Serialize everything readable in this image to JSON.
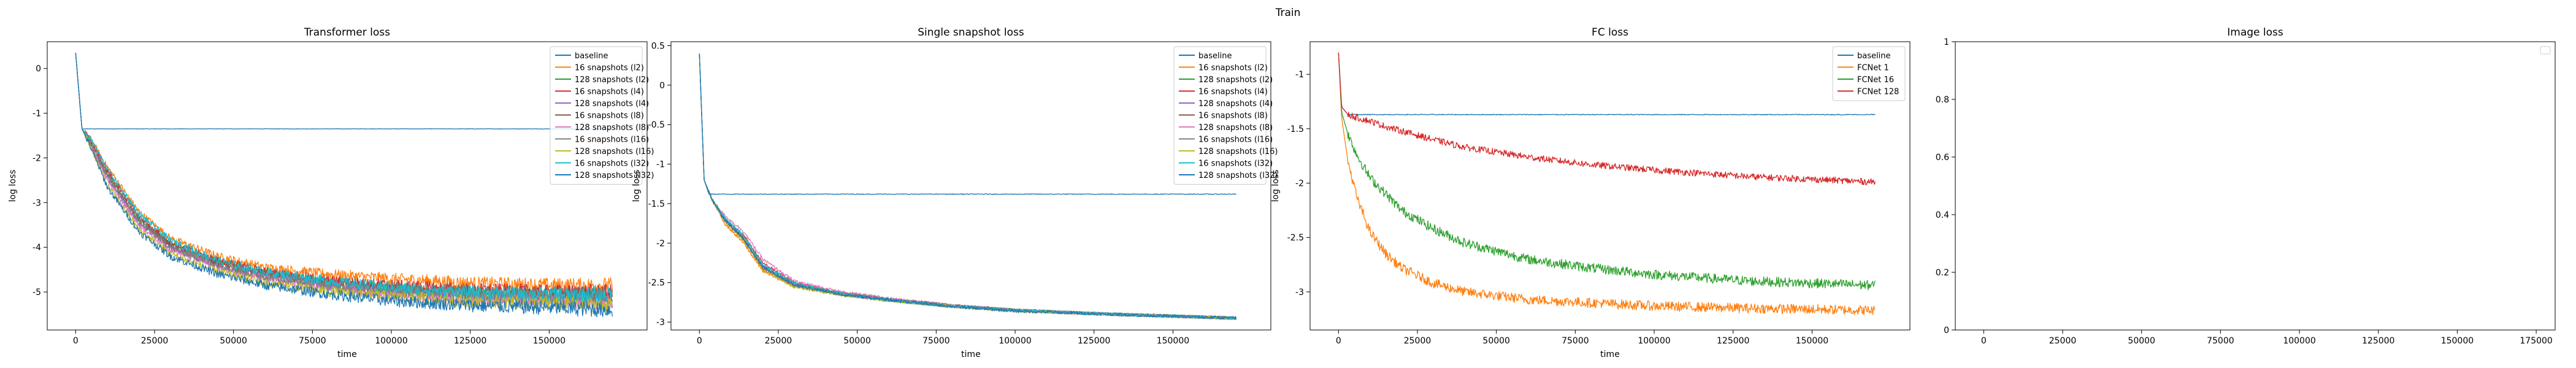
{
  "figure": {
    "suptitle": "Train"
  },
  "chart_data": [
    {
      "type": "line",
      "title": "Transformer loss",
      "xlabel": "time",
      "ylabel": "log loss",
      "xlim": [
        -9000,
        181000
      ],
      "ylim": [
        -5.85,
        0.6
      ],
      "xticks": [
        0,
        25000,
        50000,
        75000,
        100000,
        125000,
        150000
      ],
      "yticks": [
        0,
        -1,
        -2,
        -3,
        -4,
        -5
      ],
      "legend_position": "top-right",
      "x_range": [
        0,
        170000
      ],
      "series": [
        {
          "name": "baseline",
          "color": "#1f77b4",
          "x": [
            0,
            2000,
            5000,
            10000,
            20000,
            40000,
            60000,
            80000,
            100000,
            120000,
            140000,
            160000,
            170000
          ],
          "y": [
            0.35,
            -1.35,
            -1.35,
            -1.35,
            -1.35,
            -1.35,
            -1.35,
            -1.35,
            -1.35,
            -1.35,
            -1.35,
            -1.35,
            -1.35
          ]
        },
        {
          "name": "16 snapshots (l2)",
          "color": "#ff7f0e",
          "x": [
            0,
            2000,
            5000,
            10000,
            20000,
            30000,
            45000,
            60000,
            80000,
            100000,
            125000,
            150000,
            170000
          ],
          "y": [
            0.35,
            -1.35,
            -1.6,
            -2.2,
            -3.2,
            -3.8,
            -4.2,
            -4.45,
            -4.6,
            -4.7,
            -4.8,
            -4.85,
            -4.85
          ]
        },
        {
          "name": "128 snapshots (l2)",
          "color": "#2ca02c",
          "x": [
            0,
            2000,
            5000,
            10000,
            20000,
            30000,
            45000,
            60000,
            80000,
            100000,
            125000,
            150000,
            170000
          ],
          "y": [
            0.35,
            -1.35,
            -1.7,
            -2.4,
            -3.4,
            -3.95,
            -4.35,
            -4.6,
            -4.8,
            -4.95,
            -5.05,
            -5.1,
            -5.1
          ]
        },
        {
          "name": "16 snapshots (l4)",
          "color": "#d62728",
          "x": [
            0,
            2000,
            5000,
            10000,
            20000,
            30000,
            45000,
            60000,
            80000,
            100000,
            125000,
            150000,
            170000
          ],
          "y": [
            0.35,
            -1.35,
            -1.65,
            -2.3,
            -3.3,
            -3.9,
            -4.3,
            -4.55,
            -4.75,
            -4.85,
            -4.95,
            -5.0,
            -5.0
          ]
        },
        {
          "name": "128 snapshots (l4)",
          "color": "#9467bd",
          "x": [
            0,
            2000,
            5000,
            10000,
            20000,
            30000,
            45000,
            60000,
            80000,
            100000,
            125000,
            150000,
            170000
          ],
          "y": [
            0.35,
            -1.35,
            -1.75,
            -2.45,
            -3.45,
            -4.0,
            -4.4,
            -4.65,
            -4.85,
            -5.0,
            -5.1,
            -5.15,
            -5.2
          ]
        },
        {
          "name": "16 snapshots (l8)",
          "color": "#8c564b",
          "x": [
            0,
            2000,
            5000,
            10000,
            20000,
            30000,
            45000,
            60000,
            80000,
            100000,
            125000,
            150000,
            170000
          ],
          "y": [
            0.35,
            -1.35,
            -1.7,
            -2.35,
            -3.35,
            -3.95,
            -4.35,
            -4.6,
            -4.8,
            -4.9,
            -5.0,
            -5.05,
            -5.05
          ]
        },
        {
          "name": "128 snapshots (l8)",
          "color": "#e377c2",
          "x": [
            0,
            2000,
            5000,
            10000,
            20000,
            30000,
            45000,
            60000,
            80000,
            100000,
            125000,
            150000,
            170000
          ],
          "y": [
            0.35,
            -1.35,
            -1.75,
            -2.5,
            -3.5,
            -4.05,
            -4.45,
            -4.7,
            -4.9,
            -5.05,
            -5.15,
            -5.2,
            -5.25
          ]
        },
        {
          "name": "16 snapshots (l16)",
          "color": "#7f7f7f",
          "x": [
            0,
            2000,
            5000,
            10000,
            20000,
            30000,
            45000,
            60000,
            80000,
            100000,
            125000,
            150000,
            170000
          ],
          "y": [
            0.35,
            -1.35,
            -1.7,
            -2.4,
            -3.4,
            -4.0,
            -4.4,
            -4.65,
            -4.85,
            -4.95,
            -5.05,
            -5.1,
            -5.1
          ]
        },
        {
          "name": "128 snapshots (l16)",
          "color": "#bcbd22",
          "x": [
            0,
            2000,
            5000,
            10000,
            20000,
            30000,
            45000,
            60000,
            80000,
            100000,
            125000,
            150000,
            170000
          ],
          "y": [
            0.35,
            -1.35,
            -1.8,
            -2.6,
            -3.6,
            -4.15,
            -4.55,
            -4.8,
            -5.0,
            -5.1,
            -5.2,
            -5.25,
            -5.3
          ]
        },
        {
          "name": "16 snapshots (l32)",
          "color": "#17becf",
          "x": [
            0,
            2000,
            5000,
            10000,
            20000,
            30000,
            45000,
            60000,
            80000,
            100000,
            125000,
            150000,
            170000
          ],
          "y": [
            0.35,
            -1.35,
            -1.6,
            -2.25,
            -3.25,
            -3.85,
            -4.3,
            -4.55,
            -4.75,
            -4.9,
            -5.0,
            -5.05,
            -5.05
          ]
        },
        {
          "name": "128 snapshots (l32)",
          "color": "#1f77b4",
          "x": [
            0,
            2000,
            5000,
            10000,
            20000,
            30000,
            45000,
            60000,
            80000,
            100000,
            125000,
            150000,
            170000
          ],
          "y": [
            0.35,
            -1.35,
            -1.8,
            -2.65,
            -3.65,
            -4.2,
            -4.6,
            -4.85,
            -5.05,
            -5.2,
            -5.3,
            -5.35,
            -5.4
          ]
        }
      ]
    },
    {
      "type": "line",
      "title": "Single snapshot loss",
      "xlabel": "time",
      "ylabel": "log loss",
      "xlim": [
        -9000,
        181000
      ],
      "ylim": [
        -3.1,
        0.55
      ],
      "xticks": [
        0,
        25000,
        50000,
        75000,
        100000,
        125000,
        150000
      ],
      "yticks": [
        0.5,
        0.0,
        -0.5,
        -1.0,
        -1.5,
        -2.0,
        -2.5,
        -3.0
      ],
      "legend_position": "top-right",
      "series": [
        {
          "name": "baseline",
          "color": "#1f77b4",
          "x": [
            0,
            1500,
            3000,
            10000,
            40000,
            80000,
            120000,
            160000,
            170000
          ],
          "y": [
            0.4,
            -1.2,
            -1.38,
            -1.38,
            -1.38,
            -1.38,
            -1.38,
            -1.38,
            -1.38
          ]
        },
        {
          "name": "16 snapshots (l2)",
          "color": "#ff7f0e",
          "x": [
            0,
            1500,
            4000,
            8000,
            14000,
            20000,
            30000,
            45000,
            60000,
            80000,
            100000,
            130000,
            170000
          ],
          "y": [
            0.4,
            -1.2,
            -1.45,
            -1.75,
            -2.0,
            -2.35,
            -2.55,
            -2.65,
            -2.72,
            -2.8,
            -2.85,
            -2.9,
            -2.95
          ]
        },
        {
          "name": "128 snapshots (l2)",
          "color": "#2ca02c",
          "x": [
            0,
            1500,
            4000,
            8000,
            14000,
            20000,
            30000,
            45000,
            60000,
            80000,
            100000,
            130000,
            170000
          ],
          "y": [
            0.4,
            -1.2,
            -1.45,
            -1.7,
            -1.95,
            -2.3,
            -2.52,
            -2.64,
            -2.72,
            -2.8,
            -2.85,
            -2.9,
            -2.95
          ]
        },
        {
          "name": "16 snapshots (l4)",
          "color": "#d62728",
          "x": [
            0,
            1500,
            4000,
            8000,
            14000,
            20000,
            30000,
            45000,
            60000,
            80000,
            100000,
            130000,
            170000
          ],
          "y": [
            0.4,
            -1.2,
            -1.45,
            -1.7,
            -1.9,
            -2.25,
            -2.5,
            -2.63,
            -2.71,
            -2.79,
            -2.85,
            -2.9,
            -2.95
          ]
        },
        {
          "name": "128 snapshots (l4)",
          "color": "#9467bd",
          "x": [
            0,
            1500,
            4000,
            8000,
            14000,
            20000,
            30000,
            45000,
            60000,
            80000,
            100000,
            130000,
            170000
          ],
          "y": [
            0.4,
            -1.2,
            -1.45,
            -1.7,
            -1.95,
            -2.3,
            -2.53,
            -2.65,
            -2.72,
            -2.8,
            -2.85,
            -2.9,
            -2.95
          ]
        },
        {
          "name": "16 snapshots (l8)",
          "color": "#8c564b",
          "x": [
            0,
            1500,
            4000,
            8000,
            14000,
            20000,
            30000,
            45000,
            60000,
            80000,
            100000,
            130000,
            170000
          ],
          "y": [
            0.4,
            -1.2,
            -1.45,
            -1.72,
            -1.95,
            -2.32,
            -2.54,
            -2.65,
            -2.72,
            -2.8,
            -2.85,
            -2.9,
            -2.95
          ]
        },
        {
          "name": "128 snapshots (l8)",
          "color": "#e377c2",
          "x": [
            0,
            1500,
            4000,
            8000,
            14000,
            20000,
            30000,
            45000,
            60000,
            80000,
            100000,
            130000,
            170000
          ],
          "y": [
            0.4,
            -1.2,
            -1.45,
            -1.65,
            -1.85,
            -2.2,
            -2.48,
            -2.62,
            -2.7,
            -2.79,
            -2.85,
            -2.9,
            -2.95
          ]
        },
        {
          "name": "16 snapshots (l16)",
          "color": "#7f7f7f",
          "x": [
            0,
            1500,
            4000,
            8000,
            14000,
            20000,
            30000,
            45000,
            60000,
            80000,
            100000,
            130000,
            170000
          ],
          "y": [
            0.4,
            -1.2,
            -1.45,
            -1.7,
            -1.92,
            -2.28,
            -2.52,
            -2.64,
            -2.71,
            -2.79,
            -2.85,
            -2.9,
            -2.95
          ]
        },
        {
          "name": "128 snapshots (l16)",
          "color": "#bcbd22",
          "x": [
            0,
            1500,
            4000,
            8000,
            14000,
            20000,
            30000,
            45000,
            60000,
            80000,
            100000,
            130000,
            170000
          ],
          "y": [
            0.4,
            -1.2,
            -1.45,
            -1.72,
            -1.97,
            -2.33,
            -2.55,
            -2.66,
            -2.73,
            -2.8,
            -2.86,
            -2.9,
            -2.95
          ]
        },
        {
          "name": "16 snapshots (l32)",
          "color": "#17becf",
          "x": [
            0,
            1500,
            4000,
            8000,
            14000,
            20000,
            30000,
            45000,
            60000,
            80000,
            100000,
            130000,
            170000
          ],
          "y": [
            0.4,
            -1.2,
            -1.45,
            -1.68,
            -1.9,
            -2.27,
            -2.51,
            -2.64,
            -2.72,
            -2.8,
            -2.85,
            -2.9,
            -2.95
          ]
        },
        {
          "name": "128 snapshots (l32)",
          "color": "#1f77b4",
          "x": [
            0,
            1500,
            4000,
            8000,
            14000,
            20000,
            30000,
            45000,
            60000,
            80000,
            100000,
            130000,
            170000
          ],
          "y": [
            0.4,
            -1.2,
            -1.45,
            -1.7,
            -1.95,
            -2.3,
            -2.53,
            -2.65,
            -2.72,
            -2.8,
            -2.86,
            -2.9,
            -2.95
          ]
        }
      ]
    },
    {
      "type": "line",
      "title": "FC loss",
      "xlabel": "time",
      "ylabel": "log loss",
      "xlim": [
        -9000,
        181000
      ],
      "ylim": [
        -3.35,
        -0.7
      ],
      "xticks": [
        0,
        25000,
        50000,
        75000,
        100000,
        125000,
        150000
      ],
      "yticks": [
        -1.0,
        -1.5,
        -2.0,
        -2.5,
        -3.0
      ],
      "legend_position": "top-right",
      "series": [
        {
          "name": "baseline",
          "color": "#1f77b4",
          "x": [
            0,
            1000,
            3000,
            20000,
            60000,
            100000,
            140000,
            170000
          ],
          "y": [
            -0.8,
            -1.3,
            -1.37,
            -1.37,
            -1.37,
            -1.37,
            -1.37,
            -1.37
          ]
        },
        {
          "name": "FCNet 1",
          "color": "#ff7f0e",
          "x": [
            0,
            1000,
            3000,
            6000,
            10000,
            15000,
            20000,
            30000,
            40000,
            60000,
            80000,
            100000,
            130000,
            170000
          ],
          "y": [
            -0.8,
            -1.4,
            -1.8,
            -2.15,
            -2.45,
            -2.65,
            -2.78,
            -2.92,
            -3.0,
            -3.07,
            -3.1,
            -3.13,
            -3.15,
            -3.17
          ]
        },
        {
          "name": "FCNet 16",
          "color": "#2ca02c",
          "x": [
            0,
            1000,
            3000,
            6000,
            10000,
            15000,
            20000,
            30000,
            40000,
            60000,
            80000,
            100000,
            130000,
            170000
          ],
          "y": [
            -0.8,
            -1.35,
            -1.55,
            -1.75,
            -1.95,
            -2.1,
            -2.25,
            -2.42,
            -2.55,
            -2.7,
            -2.78,
            -2.84,
            -2.9,
            -2.94
          ]
        },
        {
          "name": "FCNet 128",
          "color": "#d62728",
          "x": [
            0,
            1000,
            3000,
            6000,
            10000,
            15000,
            20000,
            30000,
            40000,
            60000,
            80000,
            100000,
            130000,
            170000
          ],
          "y": [
            -0.8,
            -1.3,
            -1.37,
            -1.4,
            -1.43,
            -1.48,
            -1.52,
            -1.6,
            -1.67,
            -1.76,
            -1.83,
            -1.88,
            -1.94,
            -1.99
          ]
        }
      ]
    },
    {
      "type": "line",
      "title": "Image loss",
      "xlabel": "",
      "ylabel": "",
      "xlim": [
        -9000,
        181000
      ],
      "ylim": [
        0.0,
        1.0
      ],
      "xticks": [
        0,
        25000,
        50000,
        75000,
        100000,
        125000,
        150000,
        175000
      ],
      "yticks": [
        0.0,
        0.2,
        0.4,
        0.6,
        0.8,
        1.0
      ],
      "legend_position": "top-right",
      "series": []
    }
  ]
}
